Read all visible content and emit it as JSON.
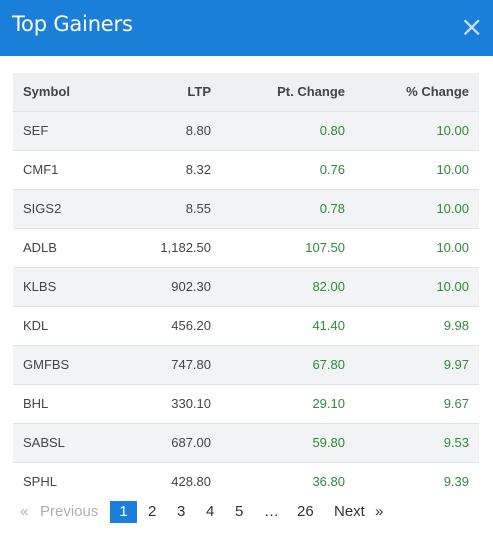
{
  "modal": {
    "title": "Top Gainers",
    "close_glyph": "×"
  },
  "table": {
    "headers": {
      "symbol": "Symbol",
      "ltp": "LTP",
      "pt_change": "Pt. Change",
      "pct_change": "% Change"
    },
    "rows": [
      {
        "symbol": "SEF",
        "ltp": "8.80",
        "pt_change": "0.80",
        "pct_change": "10.00"
      },
      {
        "symbol": "CMF1",
        "ltp": "8.32",
        "pt_change": "0.76",
        "pct_change": "10.00"
      },
      {
        "symbol": "SIGS2",
        "ltp": "8.55",
        "pt_change": "0.78",
        "pct_change": "10.00"
      },
      {
        "symbol": "ADLB",
        "ltp": "1,182.50",
        "pt_change": "107.50",
        "pct_change": "10.00"
      },
      {
        "symbol": "KLBS",
        "ltp": "902.30",
        "pt_change": "82.00",
        "pct_change": "10.00"
      },
      {
        "symbol": "KDL",
        "ltp": "456.20",
        "pt_change": "41.40",
        "pct_change": "9.98"
      },
      {
        "symbol": "GMFBS",
        "ltp": "747.80",
        "pt_change": "67.80",
        "pct_change": "9.97"
      },
      {
        "symbol": "BHL",
        "ltp": "330.10",
        "pt_change": "29.10",
        "pct_change": "9.67"
      },
      {
        "symbol": "SABSL",
        "ltp": "687.00",
        "pt_change": "59.80",
        "pct_change": "9.53"
      },
      {
        "symbol": "SPHL",
        "ltp": "428.80",
        "pt_change": "36.80",
        "pct_change": "9.39"
      }
    ]
  },
  "pagination": {
    "prev_arrow": "«",
    "prev_label": "Previous",
    "pages": [
      "1",
      "2",
      "3",
      "4",
      "5"
    ],
    "ellipsis": "…",
    "last_page": "26",
    "next_label": "Next",
    "next_arrow": "»",
    "current_page": "1"
  },
  "colors": {
    "header_bg": "#1a7fd8",
    "positive": "#2e8b3a",
    "active_page_bg": "#1a7fd8"
  }
}
